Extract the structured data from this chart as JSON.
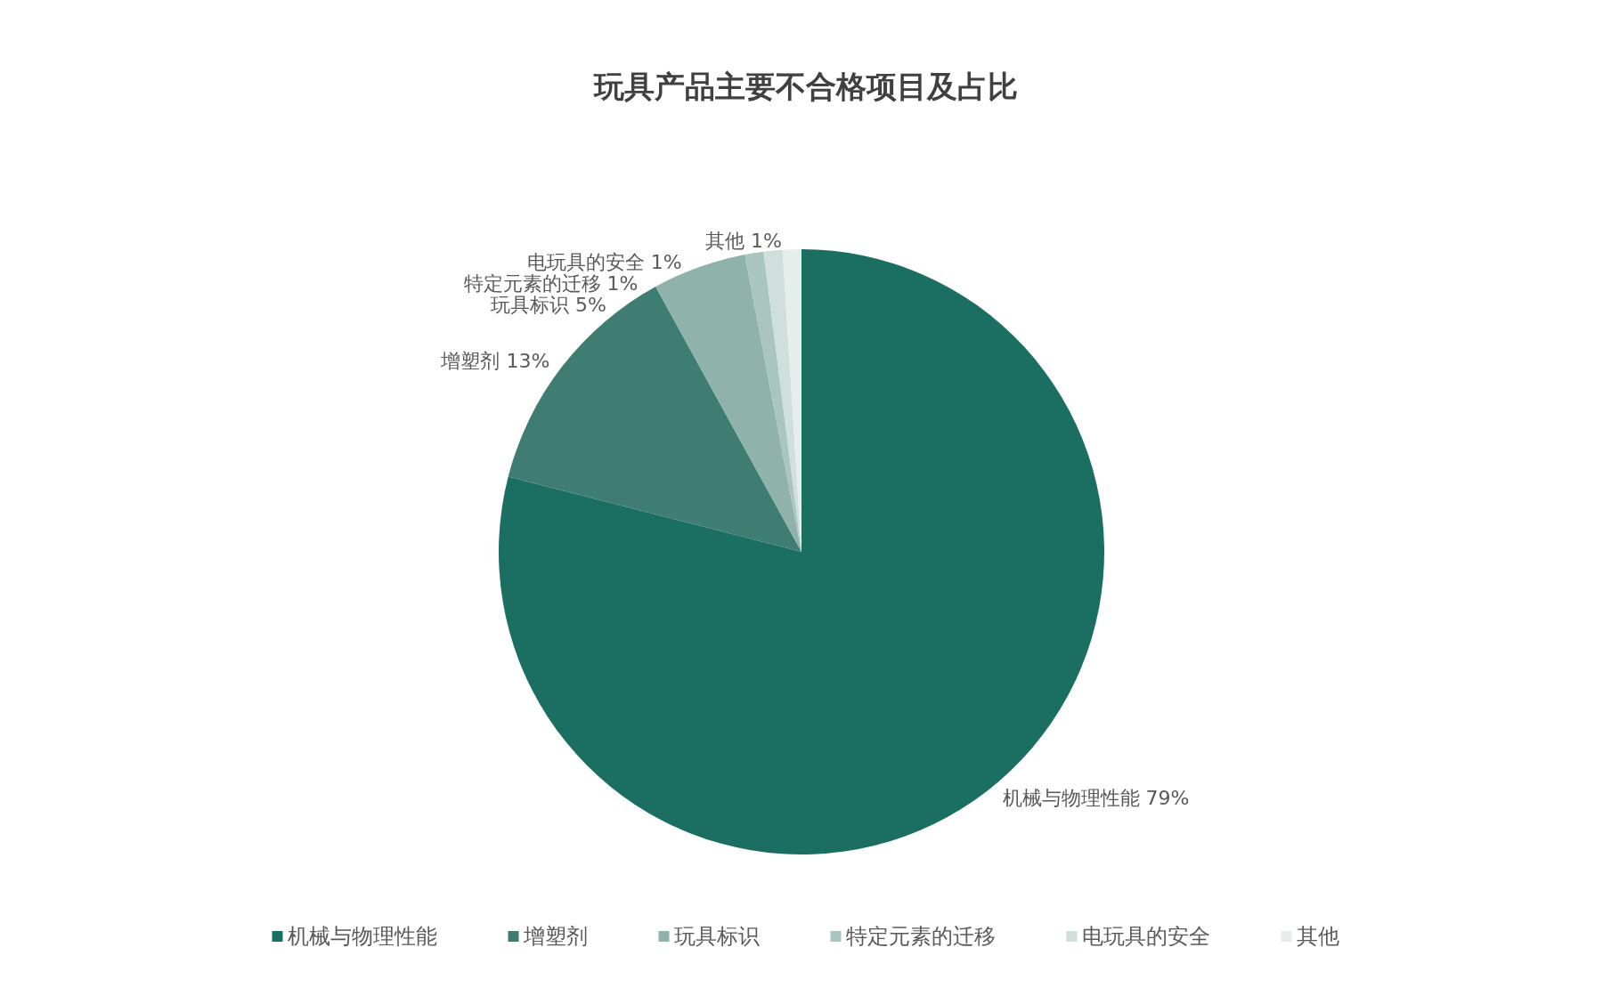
{
  "chart_data": {
    "type": "pie",
    "title": "玩具产品主要不合格项目及占比",
    "categories": [
      "机械与物理性能",
      "增塑剂",
      "玩具标识",
      "特定元素的迁移",
      "电玩具的安全",
      "其他"
    ],
    "values": [
      79,
      13,
      5,
      1,
      1,
      1
    ],
    "colors": [
      "#1b6f62",
      "#3f7c72",
      "#8fb3ab",
      "#aac5bf",
      "#cfdfdb",
      "#e6eeec"
    ],
    "value_labels": [
      "79%",
      "13%",
      "5%",
      "1%",
      "1%",
      "1%"
    ],
    "legend": "bottom"
  }
}
